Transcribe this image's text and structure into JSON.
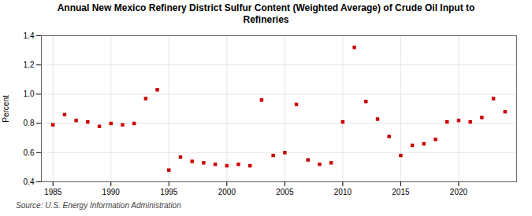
{
  "chart_data": {
    "type": "scatter",
    "title": "Annual New Mexico Refinery District Sulfur Content (Weighted Average) of Crude Oil Input to\nRefineries",
    "ylabel": "Percent",
    "source": "Source: U.S. Energy Information Administration",
    "x": [
      1985,
      1986,
      1987,
      1988,
      1989,
      1990,
      1991,
      1992,
      1993,
      1994,
      1995,
      1996,
      1997,
      1998,
      1999,
      2000,
      2001,
      2002,
      2003,
      2004,
      2005,
      2006,
      2007,
      2008,
      2009,
      2010,
      2011,
      2012,
      2013,
      2014,
      2015,
      2016,
      2017,
      2018,
      2019,
      2020,
      2021,
      2022,
      2023,
      2024
    ],
    "values": [
      0.79,
      0.86,
      0.82,
      0.81,
      0.78,
      0.8,
      0.79,
      0.8,
      0.97,
      1.03,
      0.48,
      0.57,
      0.54,
      0.53,
      0.52,
      0.51,
      0.52,
      0.51,
      0.96,
      0.58,
      0.6,
      0.93,
      0.55,
      0.52,
      0.53,
      0.81,
      1.32,
      0.95,
      0.83,
      0.71,
      0.58,
      0.65,
      0.66,
      0.69,
      0.81,
      0.82,
      0.81,
      0.84,
      0.97,
      0.88
    ],
    "color": "#cc0000",
    "marker": "square",
    "ylim": [
      0.4,
      1.4
    ],
    "yticks": [
      0.4,
      0.6,
      0.8,
      {
        "value": 1.0,
        "label": "1.0"
      },
      1.2,
      1.4
    ],
    "xlim": [
      1984,
      2025
    ],
    "xticks": [
      1985,
      1990,
      1995,
      2000,
      2005,
      2010,
      2015,
      2020
    ],
    "grid": true
  }
}
